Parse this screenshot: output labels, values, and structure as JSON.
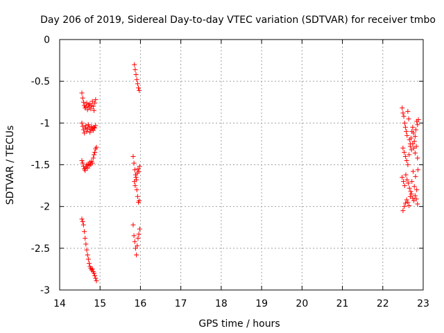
{
  "chart_data": {
    "type": "scatter",
    "title": "Day 206 of 2019, Sidereal Day-to-day VTEC variation (SDTVAR) for receiver tmbo",
    "xlabel": "GPS time / hours",
    "ylabel": "SDTVAR / TECUs",
    "xlim": [
      14,
      23
    ],
    "ylim": [
      -3,
      0
    ],
    "xticks": [
      "14",
      "15",
      "16",
      "17",
      "18",
      "19",
      "20",
      "21",
      "22",
      "23"
    ],
    "yticks": [
      "0",
      "-0.5",
      "-1",
      "-1.5",
      "-2",
      "-2.5",
      "-3"
    ],
    "grid": true,
    "marker": "+",
    "marker_color": "#ff0000",
    "series": [
      {
        "name": "SDTVAR",
        "x": [
          14.55,
          14.57,
          14.59,
          14.61,
          14.63,
          14.65,
          14.67,
          14.69,
          14.71,
          14.73,
          14.75,
          14.77,
          14.79,
          14.81,
          14.83,
          14.85,
          14.87,
          14.89,
          14.55,
          14.57,
          14.59,
          14.61,
          14.63,
          14.65,
          14.67,
          14.69,
          14.71,
          14.73,
          14.75,
          14.77,
          14.79,
          14.81,
          14.83,
          14.85,
          14.87,
          14.89,
          14.55,
          14.57,
          14.59,
          14.61,
          14.63,
          14.65,
          14.67,
          14.69,
          14.71,
          14.73,
          14.75,
          14.77,
          14.79,
          14.81,
          14.83,
          14.85,
          14.87,
          14.89,
          14.91,
          14.55,
          14.57,
          14.59,
          14.61,
          14.63,
          14.65,
          14.67,
          14.69,
          14.71,
          14.73,
          14.75,
          14.77,
          14.79,
          14.81,
          14.83,
          14.85,
          14.87,
          14.89,
          14.91,
          15.85,
          15.87,
          15.89,
          15.91,
          15.93,
          15.95,
          15.97,
          15.82,
          15.84,
          15.86,
          15.88,
          15.9,
          15.92,
          15.94,
          15.96,
          15.98,
          15.85,
          15.87,
          15.89,
          15.91,
          15.93,
          15.95,
          15.97,
          15.82,
          15.84,
          15.86,
          15.88,
          15.9,
          15.92,
          15.94,
          15.96,
          15.98,
          22.48,
          22.5,
          22.52,
          22.54,
          22.56,
          22.58,
          22.6,
          22.62,
          22.64,
          22.66,
          22.68,
          22.7,
          22.72,
          22.74,
          22.76,
          22.78,
          22.8,
          22.82,
          22.84,
          22.86,
          22.88,
          22.5,
          22.53,
          22.56,
          22.59,
          22.62,
          22.65,
          22.68,
          22.71,
          22.74,
          22.77,
          22.8,
          22.83,
          22.86,
          22.48,
          22.51,
          22.54,
          22.57,
          22.6,
          22.63,
          22.66,
          22.69,
          22.72,
          22.75,
          22.78,
          22.81,
          22.84,
          22.87,
          22.5,
          22.53,
          22.56,
          22.59,
          22.62,
          22.65,
          22.68,
          22.71,
          22.74,
          22.77,
          22.8,
          22.83,
          22.86
        ],
        "y": [
          -0.64,
          -0.7,
          -0.75,
          -0.79,
          -0.82,
          -0.8,
          -0.76,
          -0.84,
          -0.78,
          -0.81,
          -0.77,
          -0.83,
          -0.79,
          -0.74,
          -0.8,
          -0.85,
          -0.76,
          -0.72,
          -1.0,
          -1.04,
          -1.08,
          -1.12,
          -1.06,
          -1.03,
          -1.1,
          -1.07,
          -1.02,
          -1.05,
          -1.11,
          -1.08,
          -1.04,
          -1.07,
          -1.09,
          -1.05,
          -1.06,
          -1.03,
          -1.45,
          -1.48,
          -1.52,
          -1.55,
          -1.57,
          -1.53,
          -1.5,
          -1.54,
          -1.49,
          -1.51,
          -1.47,
          -1.5,
          -1.46,
          -1.48,
          -1.42,
          -1.38,
          -1.35,
          -1.31,
          -1.29,
          -2.15,
          -2.18,
          -2.22,
          -2.3,
          -2.38,
          -2.45,
          -2.52,
          -2.58,
          -2.63,
          -2.68,
          -2.72,
          -2.74,
          -2.76,
          -2.75,
          -2.78,
          -2.8,
          -2.83,
          -2.86,
          -2.89,
          -0.3,
          -0.36,
          -0.42,
          -0.48,
          -0.53,
          -0.58,
          -0.61,
          -1.4,
          -1.48,
          -1.56,
          -1.62,
          -1.68,
          -1.6,
          -1.55,
          -1.58,
          -1.52,
          -1.7,
          -1.75,
          -1.65,
          -1.8,
          -1.88,
          -1.95,
          -1.93,
          -2.22,
          -2.35,
          -2.42,
          -2.5,
          -2.58,
          -2.47,
          -2.38,
          -2.33,
          -2.27,
          -0.82,
          -0.88,
          -0.92,
          -1.0,
          -1.05,
          -1.1,
          -1.15,
          -0.86,
          -0.95,
          -1.2,
          -1.25,
          -1.18,
          -1.1,
          -1.05,
          -1.12,
          -1.22,
          -1.16,
          -1.08,
          -0.98,
          -1.02,
          -0.96,
          -1.3,
          -1.35,
          -1.4,
          -1.45,
          -1.5,
          -1.38,
          -1.28,
          -1.32,
          -1.25,
          -1.3,
          -1.36,
          -1.28,
          -1.42,
          -1.65,
          -1.7,
          -1.75,
          -1.62,
          -1.68,
          -1.72,
          -1.78,
          -1.82,
          -1.7,
          -1.58,
          -1.76,
          -1.64,
          -1.8,
          -1.56,
          -2.05,
          -2.0,
          -1.96,
          -1.92,
          -1.95,
          -1.99,
          -1.88,
          -1.85,
          -1.9,
          -1.93,
          -1.87,
          -1.91,
          -1.97
        ]
      }
    ]
  }
}
